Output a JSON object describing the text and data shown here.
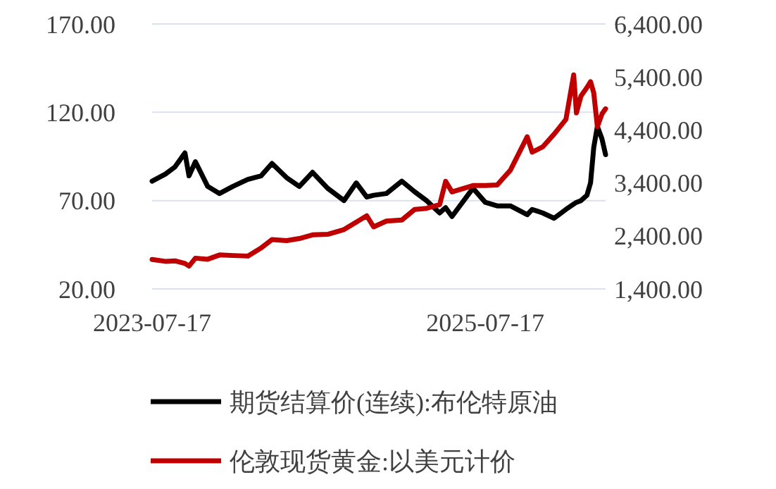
{
  "chart_data": {
    "type": "line",
    "x": [
      "2023-07-17",
      "2023-08-15",
      "2023-09-05",
      "2023-09-27",
      "2023-10-06",
      "2023-10-20",
      "2023-11-16",
      "2023-12-12",
      "2024-01-10",
      "2024-02-12",
      "2024-03-12",
      "2024-04-05",
      "2024-05-07",
      "2024-06-04",
      "2024-07-03",
      "2024-08-05",
      "2024-09-10",
      "2024-10-07",
      "2024-10-30",
      "2024-11-14",
      "2024-12-12",
      "2025-01-15",
      "2025-02-12",
      "2025-03-10",
      "2025-04-08",
      "2025-04-21",
      "2025-05-05",
      "2025-06-20",
      "2025-07-17",
      "2025-08-12",
      "2025-09-10",
      "2025-10-17",
      "2025-10-28",
      "2025-11-20",
      "2025-12-15",
      "2026-01-10",
      "2026-01-27",
      "2026-02-02",
      "2026-02-12",
      "2026-02-25",
      "2026-03-05",
      "2026-03-12",
      "2026-03-20",
      "2026-03-30",
      "2026-04-07"
    ],
    "series": [
      {
        "name": "期货结算价(连续):布伦特原油",
        "color": "#000000",
        "values": [
          81,
          85,
          89,
          97,
          84,
          92,
          78,
          74,
          78,
          82,
          84,
          91,
          83,
          78,
          86,
          77,
          70,
          80,
          72,
          73,
          74,
          81,
          75,
          70,
          63,
          66,
          61,
          77,
          69,
          67,
          67,
          62,
          65,
          63,
          60,
          65,
          68,
          69,
          70,
          73,
          80,
          100,
          112,
          105,
          96
        ]
      },
      {
        "name": "伦敦现货黄金:以美元计价",
        "color": "#c00000",
        "values": [
          1955,
          1920,
          1930,
          1880,
          1830,
          1980,
          1960,
          2040,
          2030,
          2020,
          2170,
          2330,
          2310,
          2350,
          2420,
          2430,
          2520,
          2660,
          2780,
          2570,
          2680,
          2700,
          2900,
          2920,
          2990,
          3430,
          3230,
          3350,
          3350,
          3360,
          3640,
          4270,
          3980,
          4080,
          4320,
          4600,
          5440,
          4720,
          5040,
          5200,
          5310,
          5100,
          4460,
          4700,
          4800
        ],
        "axis": "y2"
      }
    ],
    "ylim": [
      20,
      170
    ],
    "yticks": [
      {
        "value": 20,
        "label": "20.00"
      },
      {
        "value": 70,
        "label": "70.00"
      },
      {
        "value": 120,
        "label": "120.00"
      },
      {
        "value": 170,
        "label": "170.00"
      }
    ],
    "y2lim": [
      1400,
      6400
    ],
    "y2ticks": [
      {
        "value": 1400,
        "label": "1,400.00"
      },
      {
        "value": 2400,
        "label": "2,400.00"
      },
      {
        "value": 3400,
        "label": "3,400.00"
      },
      {
        "value": 4400,
        "label": "4,400.00"
      },
      {
        "value": 5400,
        "label": "5,400.00"
      },
      {
        "value": 6400,
        "label": "6,400.00"
      }
    ],
    "xlim": [
      "2023-07-17",
      "2026-04-07"
    ],
    "xticks": [
      {
        "value": "2023-07-17",
        "label": "2023-07-17"
      },
      {
        "value": "2025-07-17",
        "label": "2025-07-17"
      }
    ],
    "grid": "y",
    "legend": "bottom",
    "line_style": "solid",
    "marker": "none"
  }
}
